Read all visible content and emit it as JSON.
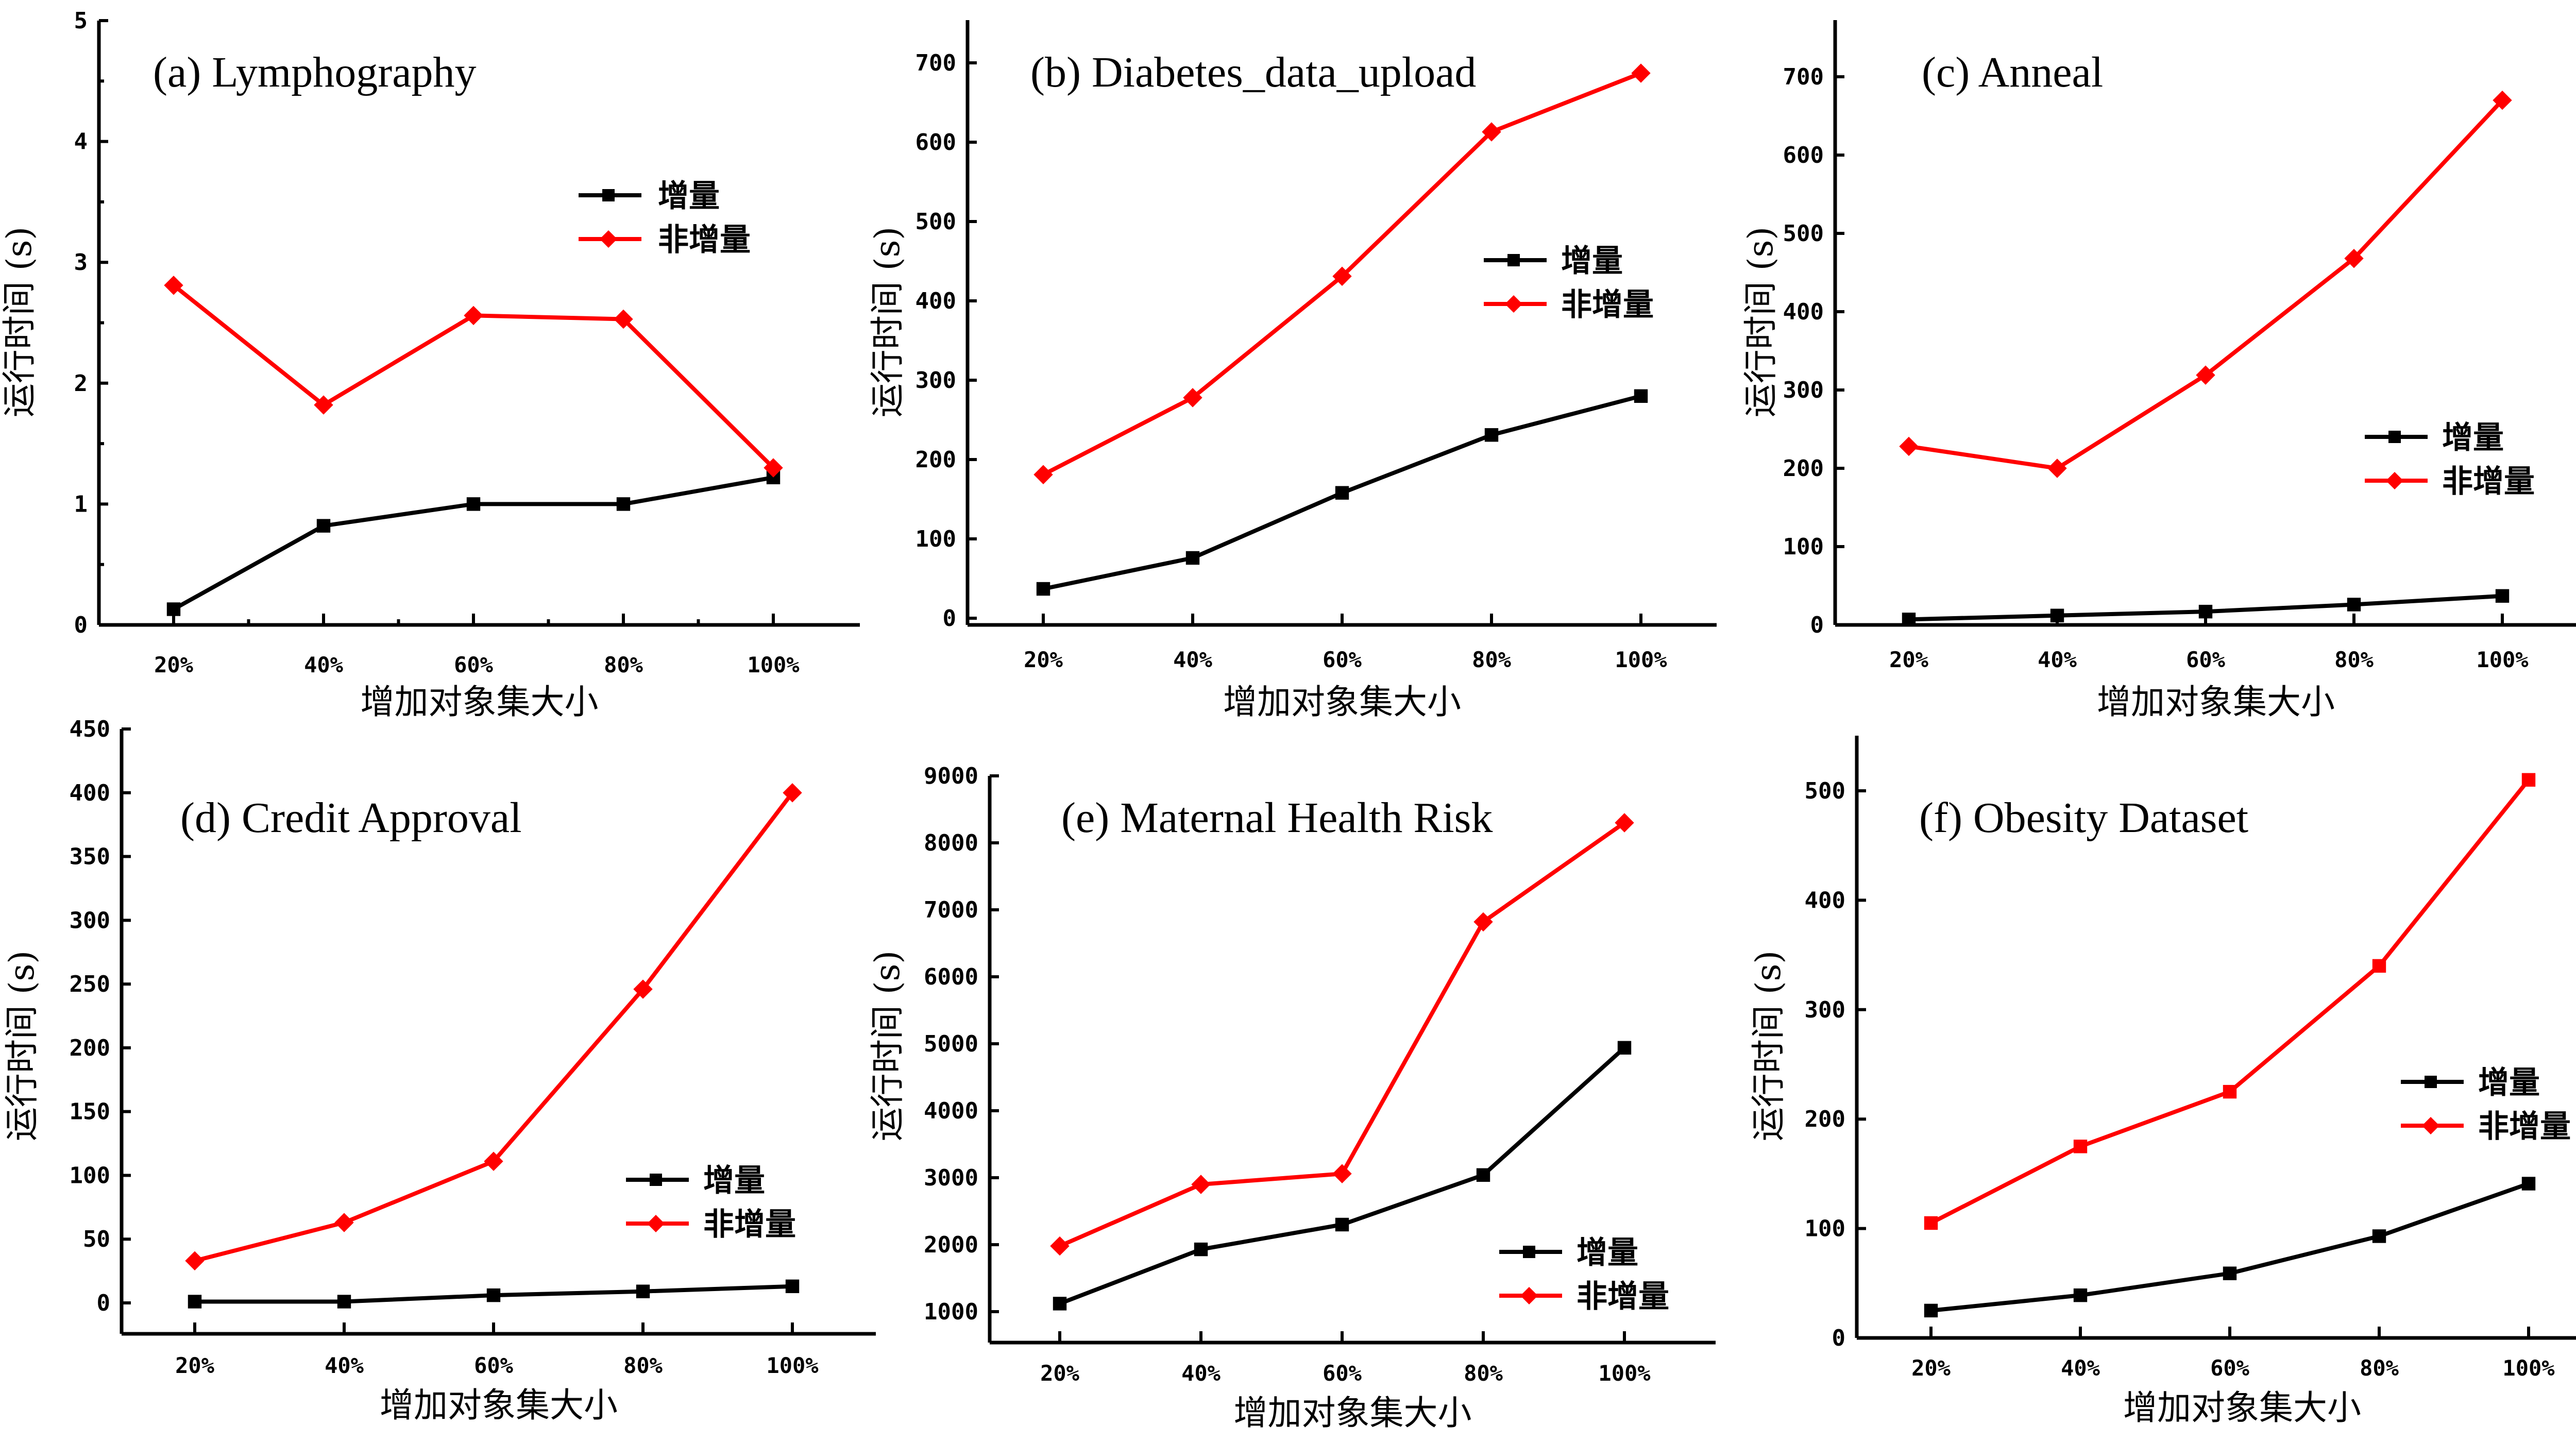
{
  "chart_data": [
    {
      "type": "line",
      "title": "(a) Lymphography",
      "xlabel": "增加对象集大小",
      "ylabel": "运行时间 (s)",
      "categories": [
        "20%",
        "40%",
        "60%",
        "80%",
        "100%"
      ],
      "ylim": [
        0,
        5
      ],
      "yticks": [
        0,
        1,
        2,
        3,
        4,
        5
      ],
      "grid": false,
      "legend_position": "upper-right",
      "series": [
        {
          "name": "增量",
          "color": "#000000",
          "marker": "square",
          "values": [
            0.13,
            0.82,
            1.0,
            1.0,
            1.22
          ]
        },
        {
          "name": "非增量",
          "color": "#ff0000",
          "marker": "diamond",
          "values": [
            2.81,
            1.82,
            2.56,
            2.53,
            1.3
          ]
        }
      ]
    },
    {
      "type": "line",
      "title": "(b) Diabetes_data_upload",
      "xlabel": "增加对象集大小",
      "ylabel": "运行时间 (s)",
      "categories": [
        "20%",
        "40%",
        "60%",
        "80%",
        "100%"
      ],
      "ylim": [
        0,
        755
      ],
      "yticks": [
        0,
        100,
        200,
        300,
        400,
        500,
        600,
        700
      ],
      "grid": false,
      "legend_position": "right-middle",
      "series": [
        {
          "name": "增量",
          "color": "#000000",
          "marker": "square",
          "values": [
            37,
            76,
            158,
            231,
            280
          ]
        },
        {
          "name": "非增量",
          "color": "#ff0000",
          "marker": "diamond",
          "values": [
            181,
            278,
            431,
            613,
            687
          ]
        }
      ]
    },
    {
      "type": "line",
      "title": "(c) Anneal",
      "xlabel": "增加对象集大小",
      "ylabel": "运行时间 (s)",
      "categories": [
        "20%",
        "40%",
        "60%",
        "80%",
        "100%"
      ],
      "ylim": [
        0,
        755
      ],
      "yticks": [
        0,
        100,
        200,
        300,
        400,
        500,
        600,
        700
      ],
      "grid": false,
      "legend_position": "right-lower",
      "series": [
        {
          "name": "增量",
          "color": "#000000",
          "marker": "square",
          "values": [
            7,
            12,
            17,
            26,
            37
          ]
        },
        {
          "name": "非增量",
          "color": "#ff0000",
          "marker": "diamond",
          "values": [
            228,
            200,
            319,
            468,
            670
          ]
        }
      ]
    },
    {
      "type": "line",
      "title": "(d) Credit Approval",
      "xlabel": "增加对象集大小",
      "ylabel": "运行时间 (s)",
      "categories": [
        "20%",
        "40%",
        "60%",
        "80%",
        "100%"
      ],
      "ylim": [
        -24,
        450
      ],
      "yticks": [
        0,
        50,
        100,
        150,
        200,
        250,
        300,
        350,
        400,
        450
      ],
      "grid": false,
      "legend_position": "right-lower",
      "series": [
        {
          "name": "增量",
          "color": "#000000",
          "marker": "square",
          "values": [
            1,
            1,
            6,
            9,
            13
          ]
        },
        {
          "name": "非增量",
          "color": "#ff0000",
          "marker": "diamond",
          "values": [
            33,
            63,
            111,
            246,
            400
          ]
        }
      ]
    },
    {
      "type": "line",
      "title": "(e) Maternal Health Risk",
      "xlabel": "增加对象集大小",
      "ylabel": "运行时间 (s)",
      "categories": [
        "20%",
        "40%",
        "60%",
        "80%",
        "100%"
      ],
      "ylim": [
        500,
        9000
      ],
      "yticks": [
        1000,
        2000,
        3000,
        4000,
        5000,
        6000,
        7000,
        8000,
        9000
      ],
      "grid": false,
      "legend_position": "lower-right",
      "series": [
        {
          "name": "增量",
          "color": "#000000",
          "marker": "square",
          "values": [
            1120,
            1930,
            2300,
            3040,
            4940
          ]
        },
        {
          "name": "非增量",
          "color": "#ff0000",
          "marker": "diamond",
          "values": [
            1980,
            2900,
            3060,
            6820,
            8300
          ]
        }
      ]
    },
    {
      "type": "line",
      "title": "(f) Obesity Dataset",
      "xlabel": "增加对象集大小",
      "ylabel": "运行时间 (s)",
      "categories": [
        "20%",
        "40%",
        "60%",
        "80%",
        "100%"
      ],
      "ylim": [
        0,
        550
      ],
      "yticks": [
        0,
        100,
        200,
        300,
        400,
        500
      ],
      "grid": false,
      "legend_position": "right-middle",
      "series": [
        {
          "name": "增量",
          "color": "#000000",
          "marker": "square",
          "values": [
            25,
            39,
            59,
            93,
            141
          ]
        },
        {
          "name": "非增量",
          "color": "#ff0000",
          "marker": "square",
          "legend_marker": "diamond",
          "values": [
            105,
            175,
            225,
            340,
            510
          ]
        }
      ]
    }
  ]
}
